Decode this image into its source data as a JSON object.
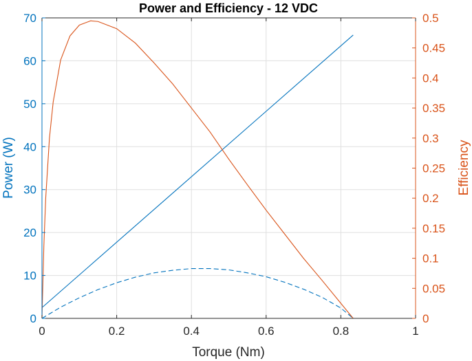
{
  "chart_data": {
    "type": "line",
    "title": "Power and Efficiency - 12 VDC",
    "xlabel": "Torque (Nm)",
    "ylabel_left": "Power (W)",
    "ylabel_right": "Efficiency",
    "xlim": [
      0,
      1
    ],
    "ylim_left": [
      0,
      70
    ],
    "ylim_right": [
      0,
      0.5
    ],
    "xticks": [
      "0",
      "0.2",
      "0.4",
      "0.6",
      "0.8",
      "1"
    ],
    "yticks_left": [
      "0",
      "10",
      "20",
      "30",
      "40",
      "50",
      "60",
      "70"
    ],
    "yticks_right": [
      "0",
      "0.05",
      "0.1",
      "0.15",
      "0.2",
      "0.25",
      "0.3",
      "0.35",
      "0.4",
      "0.45",
      "0.5"
    ],
    "grid": true,
    "colors": {
      "left_axis": "#0072BD",
      "right_axis": "#D95319",
      "axes": "#262626",
      "grid": "#dfdfdf"
    },
    "series": [
      {
        "axis": "left",
        "style": "solid",
        "color": "#0072BD",
        "x": [
          0,
          0.833
        ],
        "y": [
          2.5,
          66
        ]
      },
      {
        "axis": "left",
        "style": "dashed",
        "color": "#0072BD",
        "x": [
          0,
          0.05,
          0.1,
          0.15,
          0.2,
          0.25,
          0.3,
          0.35,
          0.4,
          0.45,
          0.5,
          0.55,
          0.6,
          0.65,
          0.7,
          0.75,
          0.8,
          0.833
        ],
        "y": [
          0,
          2.6,
          4.8,
          6.7,
          8.3,
          9.6,
          10.6,
          11.2,
          11.6,
          11.6,
          11.3,
          10.6,
          9.7,
          8.4,
          6.8,
          4.9,
          2.4,
          0
        ]
      },
      {
        "axis": "right",
        "style": "solid",
        "color": "#D95319",
        "x": [
          0,
          0.005,
          0.01,
          0.02,
          0.03,
          0.05,
          0.075,
          0.1,
          0.13,
          0.15,
          0.2,
          0.25,
          0.3,
          0.35,
          0.4,
          0.45,
          0.5,
          0.55,
          0.6,
          0.65,
          0.7,
          0.75,
          0.8,
          0.833
        ],
        "y": [
          0,
          0.12,
          0.2,
          0.3,
          0.36,
          0.43,
          0.47,
          0.488,
          0.495,
          0.494,
          0.482,
          0.458,
          0.425,
          0.39,
          0.35,
          0.31,
          0.265,
          0.222,
          0.18,
          0.14,
          0.1,
          0.063,
          0.025,
          0
        ]
      }
    ]
  }
}
